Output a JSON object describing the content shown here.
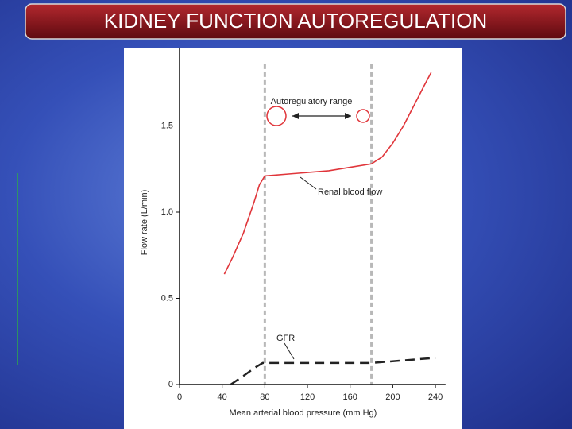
{
  "chart_data": {
    "type": "line",
    "title": "KIDNEY FUNCTION AUTOREGULATION",
    "x_label": "Mean arterial blood pressure (mm Hg)",
    "y_label": "Flow rate (L/min)",
    "xlim": [
      0,
      249.5
    ],
    "ylim": [
      0,
      1.95
    ],
    "xticks": [
      0,
      40,
      80,
      120,
      160,
      200,
      240
    ],
    "yticks": [
      0,
      0.5,
      {
        "value": 1,
        "label": "1.0"
      },
      1.5
    ],
    "reference_lines": [
      80,
      180
    ],
    "annotation": "Autoregulatory range",
    "series": [
      {
        "name": "Renal blood flow",
        "color": "#e0353a",
        "dashed": false,
        "x": [
          42,
          50,
          60,
          70,
          75,
          80,
          100,
          120,
          140,
          160,
          180,
          190,
          200,
          210,
          220,
          230,
          236
        ],
        "values": [
          0.64,
          0.74,
          0.88,
          1.06,
          1.16,
          1.21,
          1.22,
          1.23,
          1.24,
          1.26,
          1.28,
          1.32,
          1.4,
          1.5,
          1.62,
          1.74,
          1.81
        ]
      },
      {
        "name": "GFR",
        "color": "#222222",
        "dashed": true,
        "x": [
          48,
          60,
          70,
          78,
          100,
          140,
          180,
          210,
          240
        ],
        "values": [
          0,
          0.05,
          0.095,
          0.125,
          0.125,
          0.125,
          0.125,
          0.14,
          0.155
        ]
      }
    ]
  }
}
